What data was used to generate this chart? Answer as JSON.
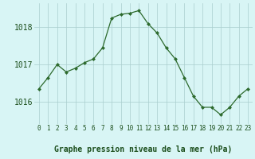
{
  "x": [
    0,
    1,
    2,
    3,
    4,
    5,
    6,
    7,
    8,
    9,
    10,
    11,
    12,
    13,
    14,
    15,
    16,
    17,
    18,
    19,
    20,
    21,
    22,
    23
  ],
  "y": [
    1016.35,
    1016.65,
    1017.0,
    1016.8,
    1016.9,
    1017.05,
    1017.15,
    1017.45,
    1018.25,
    1018.35,
    1018.38,
    1018.45,
    1018.1,
    1017.85,
    1017.45,
    1017.15,
    1016.65,
    1016.15,
    1015.85,
    1015.85,
    1015.65,
    1015.85,
    1016.15,
    1016.35
  ],
  "ylim": [
    1015.4,
    1018.65
  ],
  "yticks": [
    1016,
    1017,
    1018
  ],
  "xlabel": "Graphe pression niveau de la mer (hPa)",
  "line_color": "#2d6a2d",
  "marker": "D",
  "marker_size": 2.0,
  "bg_color": "#d8f5f5",
  "grid_color": "#aacece",
  "tick_label_color": "#1a4d1a",
  "xlabel_color": "#1a4d1a",
  "xlabel_fontsize": 7.0,
  "ytick_fontsize": 7.0,
  "xtick_fontsize": 5.5
}
